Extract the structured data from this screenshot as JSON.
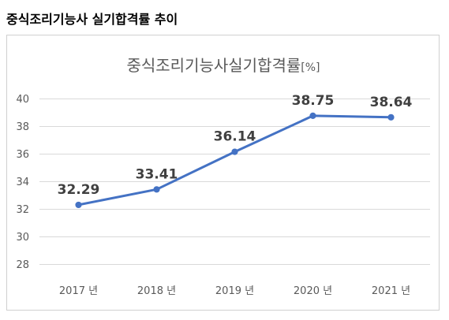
{
  "heading": "중식조리기능사 실기합격률 추이",
  "chart_data": {
    "type": "line",
    "title": "중식조리기능사실기합격률",
    "title_unit": "[%]",
    "categories": [
      "2017 년",
      "2018 년",
      "2019 년",
      "2020 년",
      "2021 년"
    ],
    "series": [
      {
        "values": [
          32.29,
          33.41,
          36.14,
          38.75,
          38.64
        ],
        "color": "#4472C4"
      }
    ],
    "yticks": [
      28,
      30,
      32,
      34,
      36,
      38,
      40
    ],
    "ylim": [
      28,
      40
    ],
    "grid": true,
    "legend": "none",
    "data_labels": true,
    "colors": {
      "gridline": "#D9D9D9",
      "frame": "#D0D0D0",
      "text": "#595959",
      "data_label": "#404040"
    }
  }
}
